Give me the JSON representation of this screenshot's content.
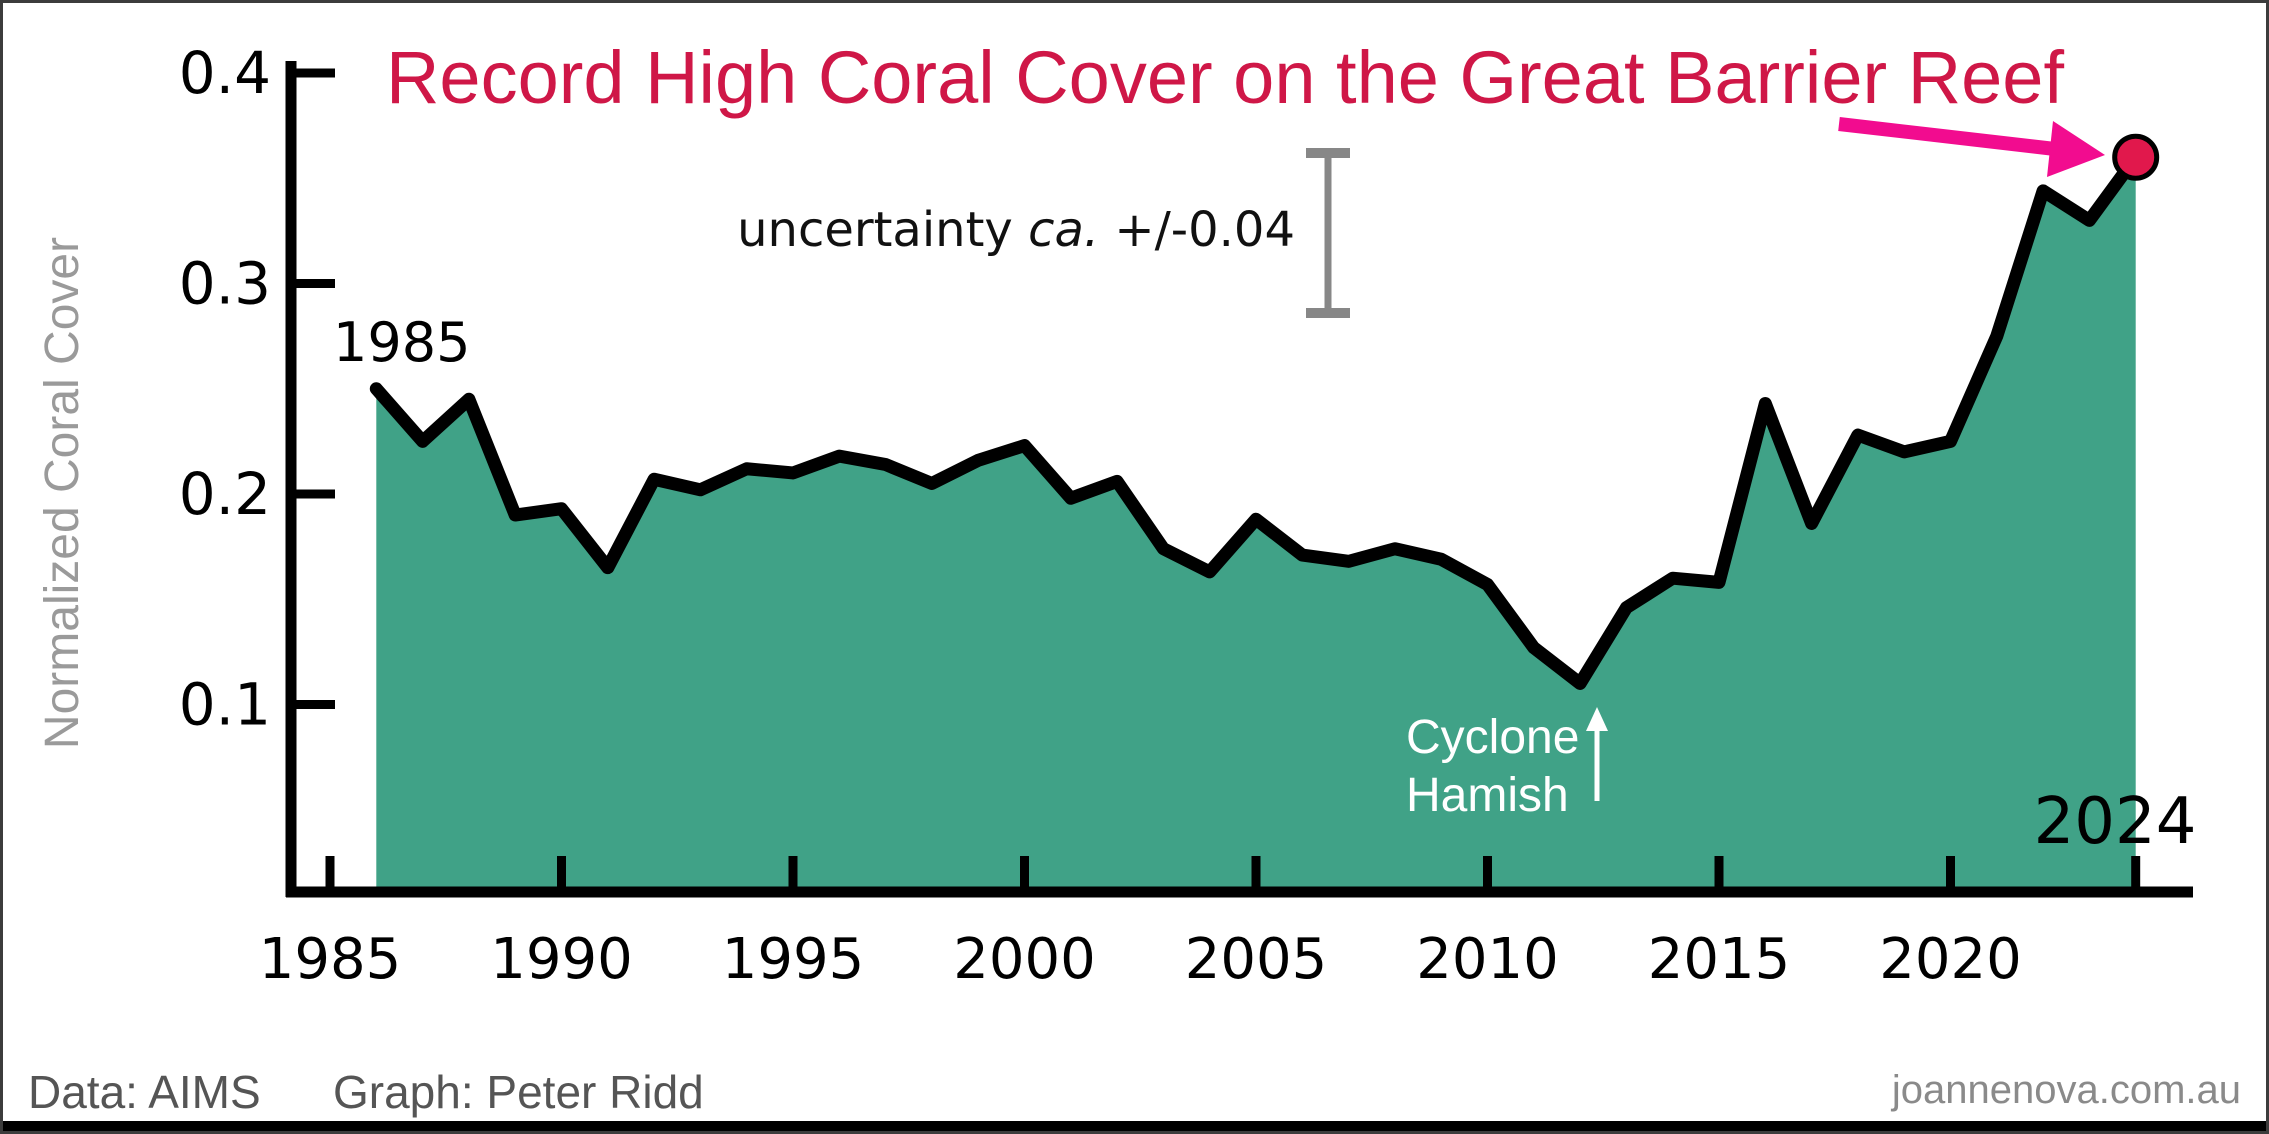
{
  "title": {
    "text": "Record High Coral Cover on the Great Barrier Reef",
    "color": "#cf1747"
  },
  "chart_data": {
    "type": "area",
    "series_name": "Normalized Coral Cover",
    "x": [
      1986,
      1987,
      1988,
      1989,
      1990,
      1991,
      1992,
      1993,
      1994,
      1995,
      1996,
      1997,
      1998,
      1999,
      2000,
      2001,
      2002,
      2003,
      2004,
      2005,
      2006,
      2007,
      2008,
      2009,
      2010,
      2011,
      2012,
      2013,
      2014,
      2015,
      2016,
      2017,
      2018,
      2019,
      2020,
      2021,
      2022,
      2023,
      2024
    ],
    "values": [
      0.25,
      0.225,
      0.245,
      0.19,
      0.193,
      0.165,
      0.207,
      0.202,
      0.212,
      0.21,
      0.218,
      0.214,
      0.205,
      0.216,
      0.223,
      0.198,
      0.206,
      0.174,
      0.163,
      0.188,
      0.171,
      0.168,
      0.174,
      0.169,
      0.157,
      0.127,
      0.11,
      0.146,
      0.16,
      0.158,
      0.243,
      0.186,
      0.228,
      0.22,
      0.225,
      0.275,
      0.344,
      0.33,
      0.36
    ],
    "ylabel": "Normalized Coral Cover",
    "xlabel": "",
    "ylim": [
      0,
      0.4
    ],
    "xlim_years": [
      1985,
      2025
    ],
    "grid": false,
    "legend": "none",
    "x_tick_labels": [
      "1985",
      "1990",
      "1995",
      "2000",
      "2005",
      "2010",
      "2015",
      "2020"
    ],
    "x_tick_years": [
      1985,
      1990,
      1995,
      2000,
      2005,
      2010,
      2015,
      2020
    ],
    "extra_x_tick_year": 2024,
    "y_tick_labels": [
      "0.4",
      "0.3",
      "0.2",
      "0.1"
    ],
    "y_tick_values": [
      0.4,
      0.3,
      0.2,
      0.1
    ],
    "area_color": "#40a287",
    "line_color": "#000000",
    "endpoint_marker_color": "#e1184c"
  },
  "annotations": {
    "start_year_label": "1985",
    "end_year_label": "2024",
    "uncertainty": {
      "prefix": "uncertainty ",
      "italic": "ca.",
      "suffix": " +/-0.04",
      "bar_top_value": 0.362,
      "bar_bottom_value": 0.286,
      "bar_color": "#878787"
    },
    "cyclone": {
      "line1": "Cyclone",
      "line2": "Hamish"
    },
    "record_high_arrow_color": "#f20c8f"
  },
  "credits": {
    "data_source": "Data: AIMS",
    "author": "Graph: Peter Ridd",
    "site": "joannenova.com.au"
  }
}
